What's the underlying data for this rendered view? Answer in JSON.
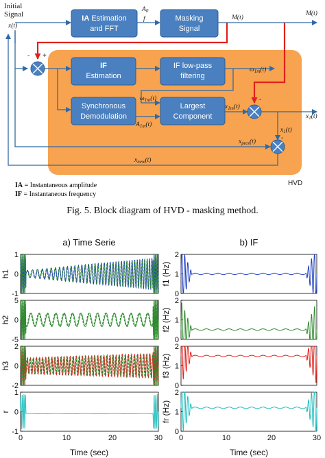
{
  "diagram": {
    "initial_signal_label_line1": "Initial",
    "initial_signal_label_line2": "Signal",
    "blocks": {
      "ia_fft_prefix": "IA",
      "ia_fft_line1_rest": " Estimation",
      "ia_fft_line2": "and FFT",
      "masking_line1": "Masking",
      "masking_line2": "Signal",
      "if_est_line1": "IF",
      "if_est_line2": "Estimation",
      "lowpass_line1": "IF low-pass",
      "lowpass_line2": "filtering",
      "sync_line1": "Synchronous",
      "sync_line2": "Demodulation",
      "largest_line1": "Largest",
      "largest_line2": "Component"
    },
    "signals": {
      "x": "x(t)",
      "a0": "A",
      "a0_sub": "0",
      "f": "f",
      "m": "M(t)",
      "m_out": "M(t)",
      "omega1m": "ω",
      "omega1m_sub": "1m",
      "omega1m_arg": "(t)",
      "a1m": "A",
      "a1m_sub": "1m",
      "a1m_arg": "(t)",
      "x1m": "x",
      "x1m_sub": "1m",
      "x1m_arg": "(t)",
      "x1_right": "x",
      "x1_right_sub": "1",
      "x1_right_arg": "(t)",
      "x1_down": "x",
      "x1_down_sub": "1",
      "x1_down_arg": "(t)",
      "xpres": "x",
      "xpres_sub": "pres",
      "xpres_arg": "(t)",
      "xnew": "x",
      "xnew_sub": "new",
      "xnew_arg": "(t)"
    },
    "signs": {
      "plus": "+",
      "minus1": "-",
      "minus2": "-",
      "minus3": "-"
    },
    "region_label": "HVD",
    "legend_ia_key": "IA",
    "legend_ia_text": " = Instantaneous amplitude",
    "legend_if_key": "IF",
    "legend_if_text": " = Instantaneous frequency",
    "colors": {
      "block": "#4a80bf",
      "region": "#f7a34f",
      "feedback": "#e0201b",
      "line": "#2f6aa6"
    }
  },
  "caption": "Fig. 5.  Block diagram of HVD - masking method.",
  "chart_data": [
    {
      "type": "line",
      "title": "a) Time Serie",
      "subplots": [
        {
          "ylabel": "h1",
          "ylim": [
            -1,
            1
          ],
          "yticks": [
            "1",
            "0",
            "-1"
          ],
          "series_colors": [
            "#1f3fbf",
            "#2e8b2e"
          ]
        },
        {
          "ylabel": "h2",
          "ylim": [
            -5,
            5
          ],
          "yticks": [
            "5",
            "0",
            "-5"
          ],
          "series_colors": [
            "#2e8b2e",
            "#2e8b2e"
          ]
        },
        {
          "ylabel": "h3",
          "ylim": [
            -2,
            2
          ],
          "yticks": [
            "2",
            "0",
            "-2"
          ],
          "series_colors": [
            "#e0201b",
            "#2e8b2e"
          ]
        },
        {
          "ylabel": "r",
          "ylim": [
            -1,
            1
          ],
          "yticks": [
            "1",
            "0",
            "-1"
          ],
          "series_colors": [
            "#1fbfbf"
          ]
        }
      ],
      "xlabel": "Time (sec)",
      "xlim": [
        0,
        30
      ],
      "xticks": [
        "0",
        "10",
        "20",
        "30"
      ]
    },
    {
      "type": "line",
      "title": "b) IF",
      "subplots": [
        {
          "ylabel": "f1 (Hz)",
          "ylim": [
            0,
            2
          ],
          "yticks": [
            "2",
            "1",
            "0"
          ],
          "steady_value": 1.0,
          "color": "#1f3fbf"
        },
        {
          "ylabel": "f2 (Hz)",
          "ylim": [
            0,
            2
          ],
          "yticks": [
            "2",
            "1",
            "0"
          ],
          "steady_value": 0.5,
          "color": "#2e8b2e"
        },
        {
          "ylabel": "f3 (Hz)",
          "ylim": [
            0,
            2
          ],
          "yticks": [
            "2",
            "1",
            "0"
          ],
          "steady_value": 1.5,
          "color": "#e0201b"
        },
        {
          "ylabel": "fr (Hz)",
          "ylim": [
            0,
            2
          ],
          "yticks": [
            "2",
            "1",
            "0"
          ],
          "steady_value": 1.2,
          "color": "#1fbfbf"
        }
      ],
      "xlabel": "Time (sec)",
      "xlim": [
        0,
        30
      ],
      "xticks": [
        "0",
        "10",
        "20",
        "30"
      ]
    }
  ]
}
